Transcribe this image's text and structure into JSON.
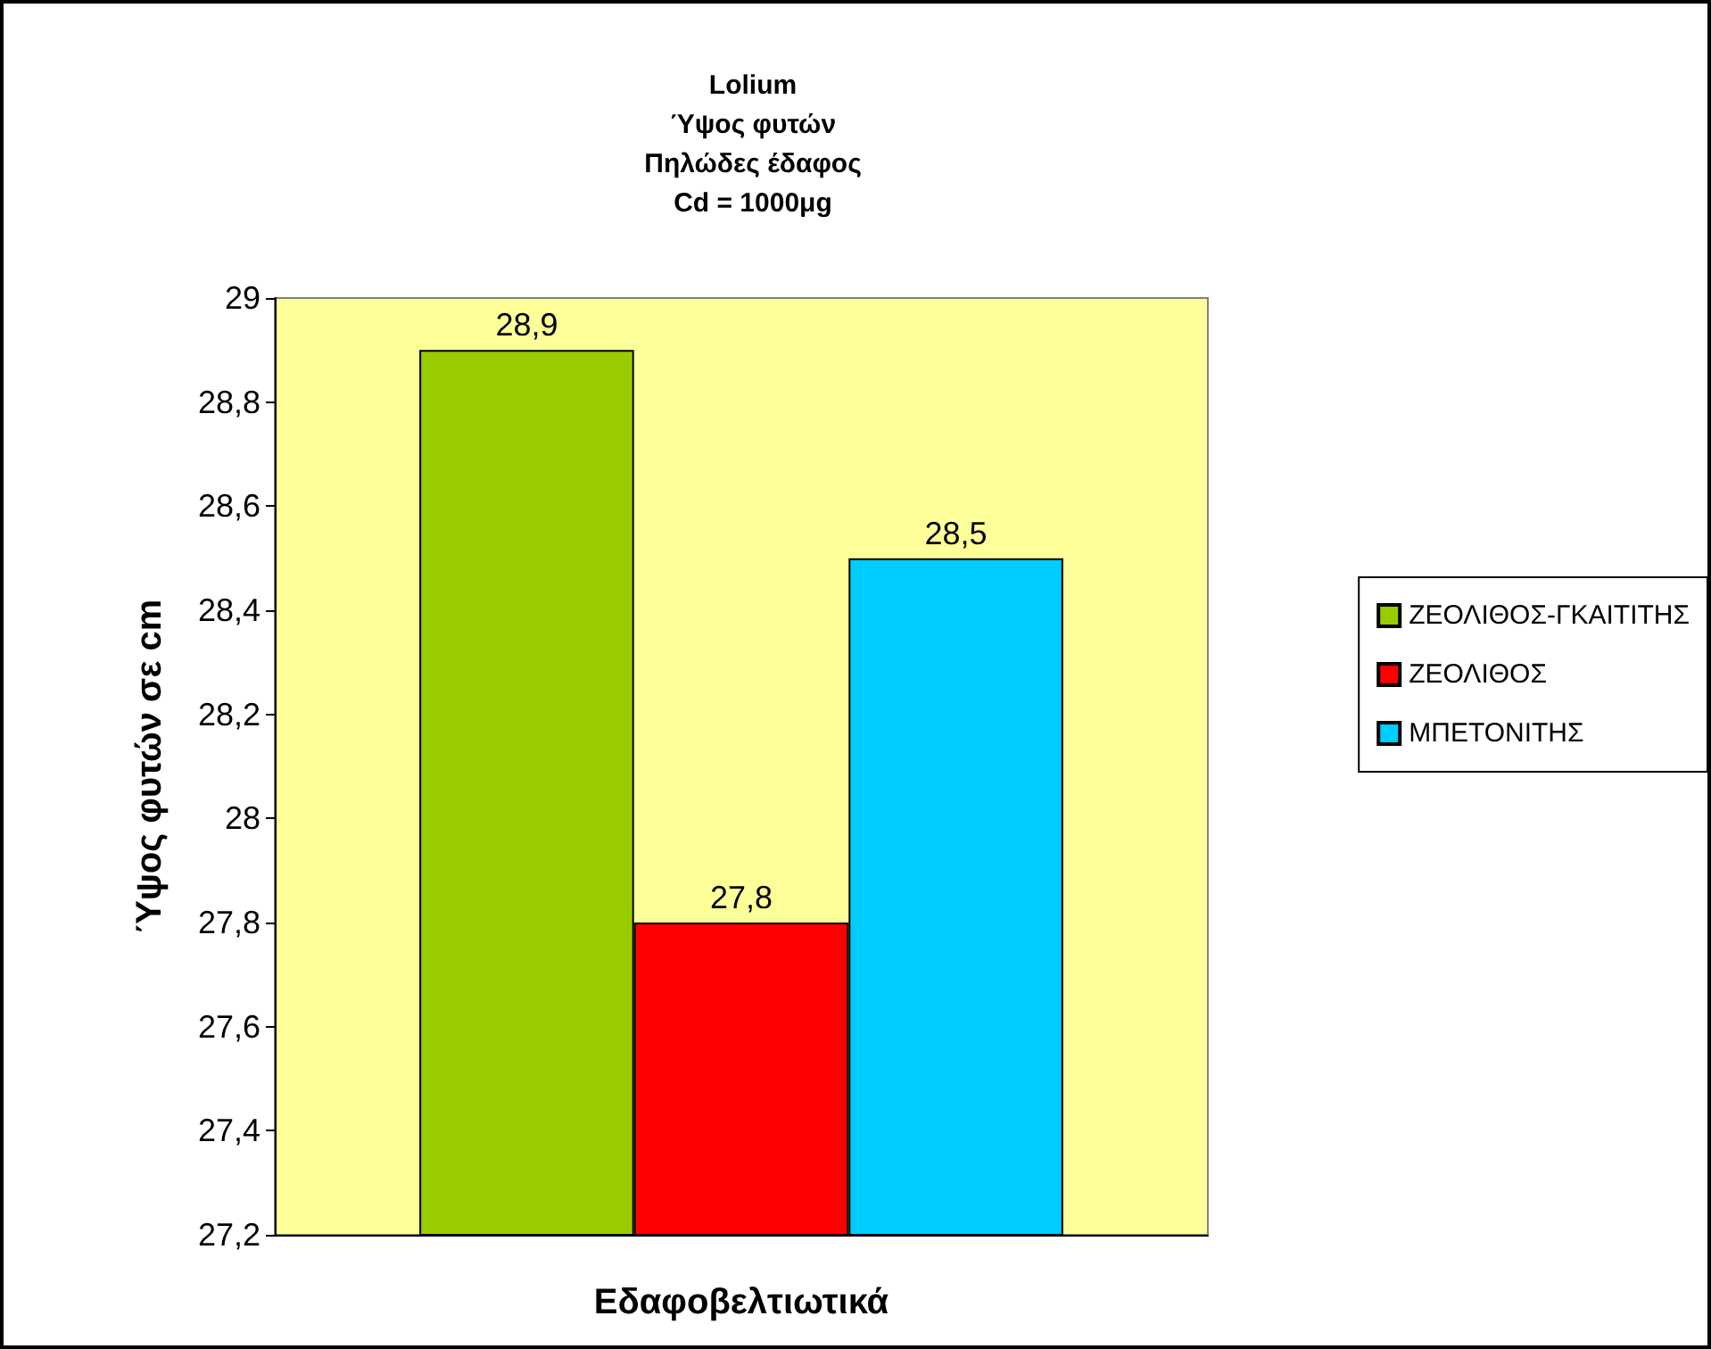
{
  "chart_data": {
    "type": "bar",
    "title": "Lolium\nΎψος φυτών\nΠηλώδες έδαφος\nCd = 1000μg",
    "xlabel": "Εδαφοβελτιωτικά",
    "ylabel": "Ύψος φυτών σε cm",
    "categories": [
      null
    ],
    "series": [
      {
        "name": "ΖΕΟΛΙΘΟΣ-ΓΚΑΙΤΙΤΗΣ",
        "color": "#99cc00",
        "values": [
          28.9
        ],
        "value_labels": [
          "28,9"
        ]
      },
      {
        "name": "ΖΕΟΛΙΘΟΣ",
        "color": "#ff0000",
        "values": [
          27.8
        ],
        "value_labels": [
          "27,8"
        ]
      },
      {
        "name": "ΜΠΕΤΟΝΙΤΗΣ",
        "color": "#00ccff",
        "values": [
          28.5
        ],
        "value_labels": [
          "28,5"
        ]
      }
    ],
    "ylim": [
      27.2,
      29
    ],
    "yticks": [
      {
        "value": 27.2,
        "label": "27,2"
      },
      {
        "value": 27.4,
        "label": "27,4"
      },
      {
        "value": 27.6,
        "label": "27,6"
      },
      {
        "value": 27.8,
        "label": "27,8"
      },
      {
        "value": 28,
        "label": "28"
      },
      {
        "value": 28.2,
        "label": "28,2"
      },
      {
        "value": 28.4,
        "label": "28,4"
      },
      {
        "value": 28.6,
        "label": "28,6"
      },
      {
        "value": 28.8,
        "label": "28,8"
      },
      {
        "value": 29,
        "label": "29"
      }
    ],
    "grid": false,
    "legend": "right"
  }
}
